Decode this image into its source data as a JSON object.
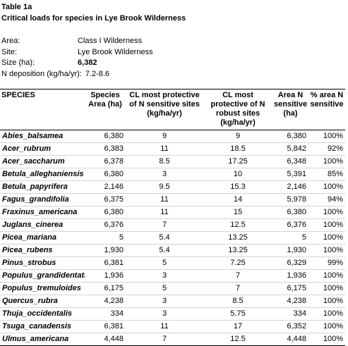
{
  "header": {
    "title_line1": "Table 1a",
    "title_line2": "Critical loads  for species in Lye Brook Wilderness"
  },
  "meta": {
    "area_label": "Area:",
    "area_value": "Class I Wilderness",
    "site_label": "Site:",
    "site_value": "Lye Brook Wilderness",
    "size_label": "Size (ha):",
    "size_value": "6,382",
    "ndep_label": "N deposition (kg/ha/yr):",
    "ndep_value": "7.2-8.6"
  },
  "table": {
    "columns": [
      "SPECIES",
      "Species Area (ha)",
      "CL most protective of N sensitive sites (kg/ha/yr)",
      "CL  most protective of N robust  sites (kg/ha/yr)",
      "Area N sensitive (ha)",
      "% area N sensitive"
    ],
    "rows": [
      {
        "species": "Abies_balsamea",
        "area": "6,380",
        "cl_sens": "9",
        "cl_rob": "9",
        "area_n": "6,380",
        "pct": "100%"
      },
      {
        "species": "Acer_rubrum",
        "area": "6,383",
        "cl_sens": "11",
        "cl_rob": "18.5",
        "area_n": "5,842",
        "pct": "92%"
      },
      {
        "species": "Acer_saccharum",
        "area": "6,378",
        "cl_sens": "8.5",
        "cl_rob": "17.25",
        "area_n": "6,348",
        "pct": "100%"
      },
      {
        "species": "Betula_alleghaniensis",
        "area": "6,380",
        "cl_sens": "3",
        "cl_rob": "10",
        "area_n": "5,391",
        "pct": "85%"
      },
      {
        "species": "Betula_papyrifera",
        "area": "2,146",
        "cl_sens": "9.5",
        "cl_rob": "15.3",
        "area_n": "2,146",
        "pct": "100%"
      },
      {
        "species": "Fagus_grandifolia",
        "area": "6,375",
        "cl_sens": "11",
        "cl_rob": "14",
        "area_n": "5,978",
        "pct": "94%"
      },
      {
        "species": "Fraxinus_americana",
        "area": "6,380",
        "cl_sens": "11",
        "cl_rob": "15",
        "area_n": "6,380",
        "pct": "100%"
      },
      {
        "species": "Juglans_cinerea",
        "area": "6,376",
        "cl_sens": "7",
        "cl_rob": "12.5",
        "area_n": "6,376",
        "pct": "100%"
      },
      {
        "species": "Picea_mariana",
        "area": "5",
        "cl_sens": "5.4",
        "cl_rob": "13.25",
        "area_n": "5",
        "pct": "100%"
      },
      {
        "species": "Picea_rubens",
        "area": "1,930",
        "cl_sens": "5.4",
        "cl_rob": "13.25",
        "area_n": "1,930",
        "pct": "100%"
      },
      {
        "species": "Pinus_strobus",
        "area": "6,381",
        "cl_sens": "5",
        "cl_rob": "7.25",
        "area_n": "6,329",
        "pct": "99%"
      },
      {
        "species": "Populus_grandidentata",
        "area": "1,936",
        "cl_sens": "3",
        "cl_rob": "7",
        "area_n": "1,936",
        "pct": "100%"
      },
      {
        "species": "Populus_tremuloides",
        "area": "6,175",
        "cl_sens": "5",
        "cl_rob": "7",
        "area_n": "6,175",
        "pct": "100%"
      },
      {
        "species": "Quercus_rubra",
        "area": "4,238",
        "cl_sens": "3",
        "cl_rob": "8.5",
        "area_n": "4,238",
        "pct": "100%"
      },
      {
        "species": "Thuja_occidentalis",
        "area": "334",
        "cl_sens": "3",
        "cl_rob": "5.75",
        "area_n": "334",
        "pct": "100%"
      },
      {
        "species": "Tsuga_canadensis",
        "area": "6,381",
        "cl_sens": "11",
        "cl_rob": "17",
        "area_n": "6,352",
        "pct": "100%"
      },
      {
        "species": "Ulmus_americana",
        "area": "4,448",
        "cl_sens": "7",
        "cl_rob": "12.5",
        "area_n": "4,448",
        "pct": "100%"
      }
    ]
  }
}
